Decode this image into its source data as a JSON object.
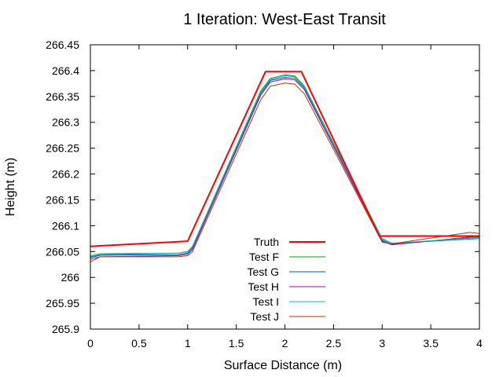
{
  "chart_data": {
    "type": "line",
    "title": "1 Iteration: West-East Transit",
    "xlabel": "Surface Distance (m)",
    "ylabel": "Height (m)",
    "xlim": [
      0,
      4
    ],
    "ylim": [
      265.9,
      266.45
    ],
    "xticks": [
      0,
      0.5,
      1,
      1.5,
      2,
      2.5,
      3,
      3.5,
      4
    ],
    "xtick_labels": [
      "0",
      "0.5",
      "1",
      "1.5",
      "2",
      "2.5",
      "3",
      "3.5",
      "4"
    ],
    "yticks": [
      265.9,
      265.95,
      266.0,
      266.05,
      266.1,
      266.15,
      266.2,
      266.25,
      266.3,
      266.35,
      266.4,
      266.45
    ],
    "ytick_labels": [
      "265.9",
      "265.95",
      "266",
      "266.05",
      "266.1",
      "266.15",
      "266.2",
      "266.25",
      "266.3",
      "266.35",
      "266.4",
      "266.45"
    ],
    "grid": false,
    "legend_position": "bottom-center",
    "series": [
      {
        "name": "Truth",
        "color": "#ff0000",
        "width": 2,
        "x": [
          0,
          1.0,
          1.8,
          2.17,
          2.97,
          4.0
        ],
        "y": [
          266.06,
          266.07,
          266.398,
          266.398,
          266.08,
          266.08
        ]
      },
      {
        "name": "Test F",
        "color": "#00a000",
        "width": 1,
        "x": [
          0,
          0.1,
          0.9,
          1.0,
          1.05,
          1.75,
          1.85,
          2.0,
          2.1,
          2.2,
          3.0,
          3.1,
          4.0
        ],
        "y": [
          266.04,
          266.044,
          266.047,
          266.05,
          266.06,
          266.36,
          266.385,
          266.392,
          266.39,
          266.37,
          266.075,
          266.066,
          266.075
        ]
      },
      {
        "name": "Test G",
        "color": "#0050d0",
        "width": 1,
        "x": [
          0,
          0.1,
          0.9,
          1.0,
          1.05,
          1.75,
          1.85,
          2.0,
          2.1,
          2.2,
          3.0,
          3.1,
          4.0
        ],
        "y": [
          266.038,
          266.043,
          266.044,
          266.047,
          266.057,
          266.355,
          266.381,
          266.387,
          266.385,
          266.366,
          266.072,
          266.064,
          266.078
        ]
      },
      {
        "name": "Test H",
        "color": "#b000b0",
        "width": 1,
        "x": [
          0,
          0.1,
          0.9,
          1.0,
          1.05,
          1.75,
          1.85,
          2.0,
          2.1,
          2.2,
          3.0,
          3.1,
          4.0
        ],
        "y": [
          266.035,
          266.04,
          266.042,
          266.045,
          266.054,
          266.352,
          266.378,
          266.384,
          266.382,
          266.363,
          266.07,
          266.063,
          266.08
        ]
      },
      {
        "name": "Test I",
        "color": "#00c0c0",
        "width": 1,
        "x": [
          0,
          0.1,
          0.9,
          1.0,
          1.05,
          1.75,
          1.85,
          2.0,
          2.1,
          2.2,
          3.0,
          3.1,
          4.0
        ],
        "y": [
          266.042,
          266.046,
          266.047,
          266.049,
          266.059,
          266.358,
          266.383,
          266.39,
          266.388,
          266.368,
          266.074,
          266.066,
          266.077
        ]
      },
      {
        "name": "Test J",
        "color": "#a04000",
        "width": 1,
        "x": [
          0,
          0.1,
          0.9,
          1.0,
          1.05,
          1.75,
          1.85,
          2.0,
          2.1,
          2.2,
          3.0,
          3.1,
          3.9,
          4.0
        ],
        "y": [
          266.03,
          266.04,
          266.04,
          266.042,
          266.05,
          266.343,
          266.37,
          266.376,
          266.374,
          266.355,
          266.068,
          266.065,
          266.087,
          266.085
        ]
      }
    ]
  }
}
